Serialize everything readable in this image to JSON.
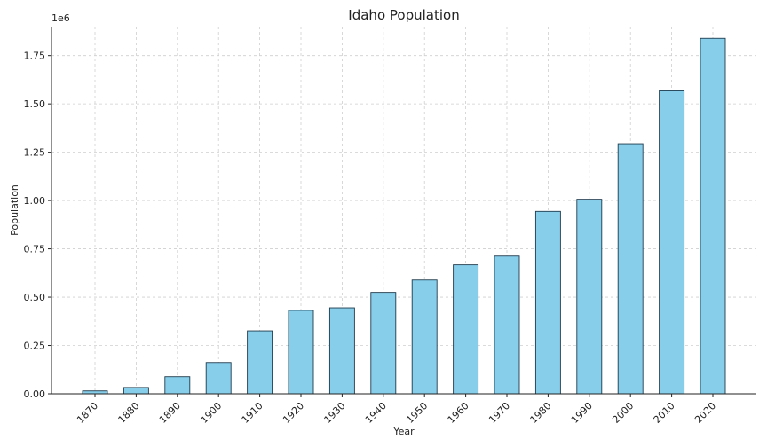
{
  "chart_data": {
    "type": "bar",
    "title": "Idaho Population",
    "xlabel": "Year",
    "ylabel": "Population",
    "y_multiplier_label": "1e6",
    "categories": [
      "1870",
      "1880",
      "1890",
      "1900",
      "1910",
      "1920",
      "1930",
      "1940",
      "1950",
      "1960",
      "1970",
      "1980",
      "1990",
      "2000",
      "2010",
      "2020"
    ],
    "values": [
      14999,
      32610,
      88548,
      161772,
      325594,
      431866,
      445032,
      524873,
      588637,
      667191,
      712567,
      943935,
      1006749,
      1293953,
      1567582,
      1839106
    ],
    "ylim": [
      0,
      1.9
    ],
    "yticks": [
      0.0,
      0.25,
      0.5,
      0.75,
      1.0,
      1.25,
      1.5,
      1.75
    ],
    "ytick_labels": [
      "0.00",
      "0.25",
      "0.50",
      "0.75",
      "1.00",
      "1.25",
      "1.50",
      "1.75"
    ],
    "grid": true,
    "bar_color": "#87ceeb",
    "edge_color": "#1f3b4d"
  }
}
